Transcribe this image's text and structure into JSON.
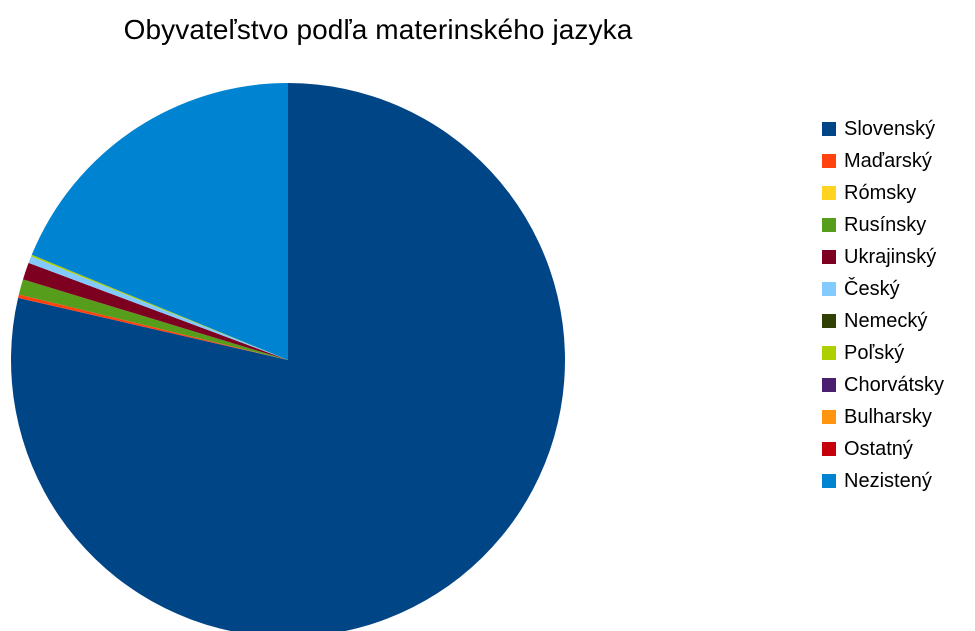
{
  "chart_data": {
    "type": "pie",
    "title": "Obyvateľstvo podľa materinského jazyka",
    "start_angle_deg": 0,
    "direction": "clockwise",
    "legend_position": "right",
    "slices": [
      {
        "label": "Slovenský",
        "value": 78.6,
        "color": "#004586"
      },
      {
        "label": "Maďarský",
        "value": 0.2,
        "color": "#ff420e"
      },
      {
        "label": "Rómsky",
        "value": 0.0,
        "color": "#ffd320"
      },
      {
        "label": "Rusínsky",
        "value": 0.9,
        "color": "#579d1c"
      },
      {
        "label": "Ukrajinský",
        "value": 1.0,
        "color": "#7e0021"
      },
      {
        "label": "Český",
        "value": 0.4,
        "color": "#83caff"
      },
      {
        "label": "Nemecký",
        "value": 0.0,
        "color": "#314004"
      },
      {
        "label": "Poľský",
        "value": 0.1,
        "color": "#aecf00"
      },
      {
        "label": "Chorvátsky",
        "value": 0.0,
        "color": "#4b1f6f"
      },
      {
        "label": "Bulharsky",
        "value": 0.0,
        "color": "#ff950e"
      },
      {
        "label": "Ostatný",
        "value": 0.0,
        "color": "#c5000b"
      },
      {
        "label": "Nezistený",
        "value": 18.8,
        "color": "#0084d1"
      }
    ]
  }
}
